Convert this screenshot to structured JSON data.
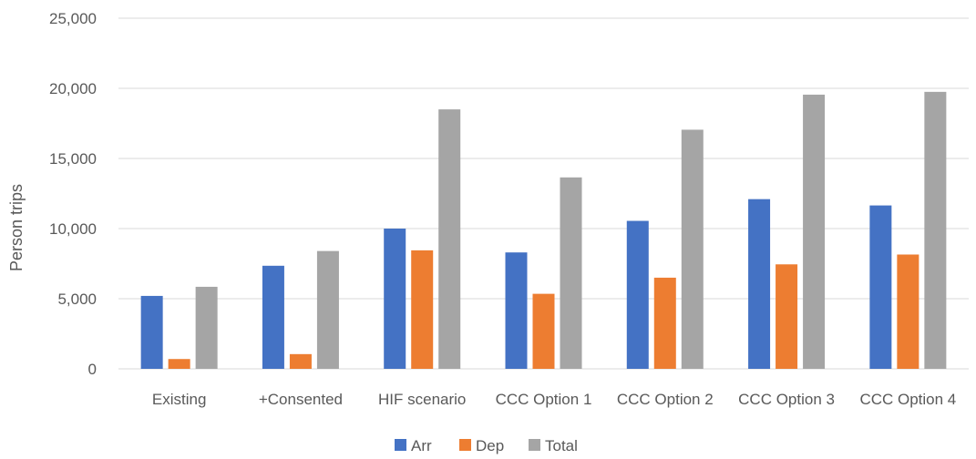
{
  "chart_data": {
    "type": "bar",
    "title": "",
    "xlabel": "",
    "ylabel": "Person trips",
    "ylim": [
      0,
      25000
    ],
    "yticks": [
      0,
      5000,
      10000,
      15000,
      20000,
      25000
    ],
    "ytick_labels": [
      "0",
      "5,000",
      "10,000",
      "15,000",
      "20,000",
      "25,000"
    ],
    "grid": true,
    "legend_position": "bottom",
    "categories": [
      "Existing",
      "+Consented",
      "HIF scenario",
      "CCC Option 1",
      "CCC Option 2",
      "CCC Option 3",
      "CCC Option 4"
    ],
    "series": [
      {
        "name": "Arr",
        "color": "#4472C4",
        "values": [
          5200,
          7350,
          10000,
          8300,
          10550,
          12100,
          11650
        ]
      },
      {
        "name": "Dep",
        "color": "#ED7D31",
        "values": [
          700,
          1050,
          8450,
          5350,
          6500,
          7450,
          8150
        ]
      },
      {
        "name": "Total",
        "color": "#A5A5A5",
        "values": [
          5850,
          8400,
          18500,
          13650,
          17050,
          19550,
          19750
        ]
      }
    ]
  }
}
